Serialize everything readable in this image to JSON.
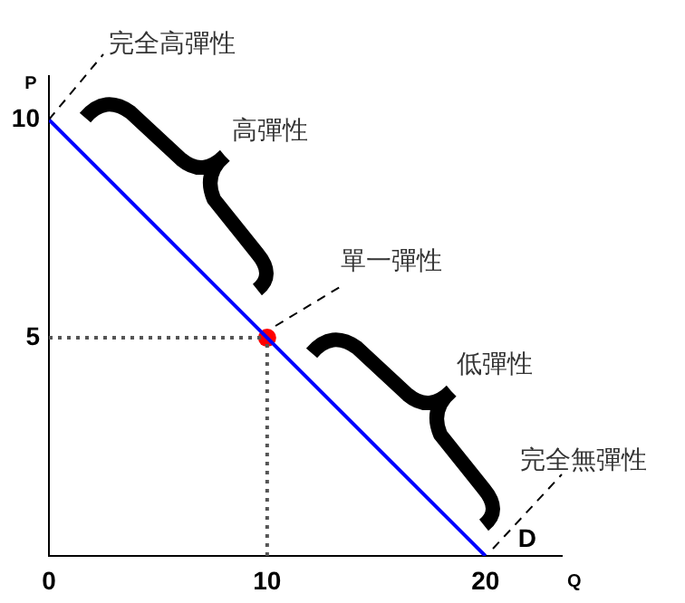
{
  "chart_data": {
    "type": "line",
    "xlabel": "Q",
    "ylabel": "P",
    "xlim": [
      0,
      23.5
    ],
    "ylim": [
      0,
      11
    ],
    "xticks": [
      0,
      10,
      20
    ],
    "yticks": [
      5,
      10
    ],
    "grid": false,
    "legend": false,
    "series": [
      {
        "name": "D",
        "color": "#0000ff",
        "x": [
          0,
          20
        ],
        "values": [
          10,
          0
        ],
        "marker": "none",
        "line_style": "solid"
      },
      {
        "color": "#555555",
        "x": [
          0,
          10
        ],
        "values": [
          5,
          5
        ],
        "marker": "none",
        "line_style": "dotted"
      },
      {
        "color": "#555555",
        "x": [
          10,
          10
        ],
        "values": [
          0,
          5
        ],
        "marker": "none",
        "line_style": "dotted"
      },
      {
        "type": "scatter",
        "color": "#ff0000",
        "x": [
          10
        ],
        "values": [
          5
        ],
        "marker": "circle"
      }
    ],
    "annotations": [
      "完全高彈性",
      "高彈性",
      "單一彈性",
      "低彈性",
      "完全無彈性"
    ]
  }
}
